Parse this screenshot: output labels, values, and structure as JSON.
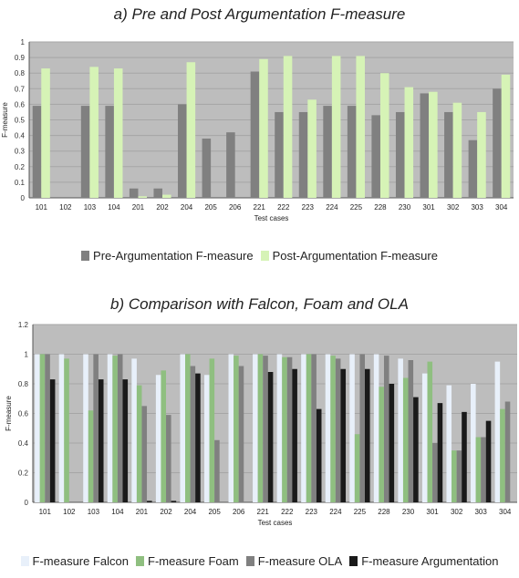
{
  "chart_data": [
    {
      "type": "bar",
      "title": "a) Pre and Post Argumentation F-measure",
      "xlabel": "Test cases",
      "ylabel": "F-measure",
      "ylim": [
        0,
        1
      ],
      "yticks": [
        0,
        0.1,
        0.2,
        0.3,
        0.4,
        0.5,
        0.6,
        0.7,
        0.8,
        0.9,
        1
      ],
      "grid": true,
      "legend_position": "bottom",
      "categories": [
        "101",
        "102",
        "103",
        "104",
        "201",
        "202",
        "204",
        "205",
        "206",
        "221",
        "222",
        "223",
        "224",
        "225",
        "228",
        "230",
        "301",
        "302",
        "303",
        "304"
      ],
      "series": [
        {
          "name": "Pre-Argumentation F-measure",
          "color": "#808080",
          "values": [
            0.59,
            0,
            0.59,
            0.59,
            0.06,
            0.06,
            0.6,
            0.38,
            0.42,
            0.81,
            0.55,
            0.55,
            0.59,
            0.59,
            0.53,
            0.55,
            0.67,
            0.55,
            0.37,
            0.7
          ]
        },
        {
          "name": "Post-Argumentation F-measure",
          "color": "#d6f3b6",
          "values": [
            0.83,
            0,
            0.84,
            0.83,
            0.01,
            0.02,
            0.87,
            0,
            0,
            0.89,
            0.91,
            0.63,
            0.91,
            0.91,
            0.8,
            0.71,
            0.68,
            0.61,
            0.55,
            0.79
          ]
        }
      ]
    },
    {
      "type": "bar",
      "title": "b) Comparison with Falcon, Foam and OLA",
      "xlabel": "Test cases",
      "ylabel": "F-measure",
      "ylim": [
        0,
        1.2
      ],
      "yticks": [
        0,
        0.2,
        0.4,
        0.6,
        0.8,
        1,
        1.2
      ],
      "grid": true,
      "legend_position": "bottom",
      "categories": [
        "101",
        "102",
        "103",
        "104",
        "201",
        "202",
        "204",
        "205",
        "206",
        "221",
        "222",
        "223",
        "224",
        "225",
        "228",
        "230",
        "301",
        "302",
        "303",
        "304"
      ],
      "series": [
        {
          "name": "F-measure Falcon",
          "color": "#e8f0fa",
          "values": [
            1.0,
            1.0,
            1.0,
            1.0,
            0.97,
            0.86,
            1.0,
            0.86,
            1.0,
            1.0,
            1.0,
            1.0,
            1.0,
            1.0,
            1.0,
            0.97,
            0.87,
            0.79,
            0.8,
            0.95
          ]
        },
        {
          "name": "F-measure Foam",
          "color": "#8fbf80",
          "values": [
            1.0,
            0.97,
            0.62,
            0.99,
            0.79,
            0.89,
            1.0,
            0.97,
            0.99,
            1.0,
            0.98,
            1.0,
            0.99,
            0.46,
            0.78,
            0.84,
            0.95,
            0.35,
            0.44,
            0.63
          ]
        },
        {
          "name": "F-measure OLA",
          "color": "#808080",
          "values": [
            1.0,
            0,
            1.0,
            1.0,
            0.65,
            0.59,
            0.92,
            0.42,
            0.92,
            0.99,
            0.98,
            1.0,
            0.97,
            1.0,
            0.99,
            0.96,
            0.4,
            0.35,
            0.44,
            0.68
          ]
        },
        {
          "name": "F-measure Argumentation",
          "color": "#1a1a1a",
          "values": [
            0.83,
            0,
            0.83,
            0.83,
            0.01,
            0.01,
            0.87,
            0,
            0,
            0.88,
            0.9,
            0.63,
            0.9,
            0.9,
            0.8,
            0.71,
            0.67,
            0.61,
            0.55,
            0
          ]
        }
      ]
    }
  ]
}
